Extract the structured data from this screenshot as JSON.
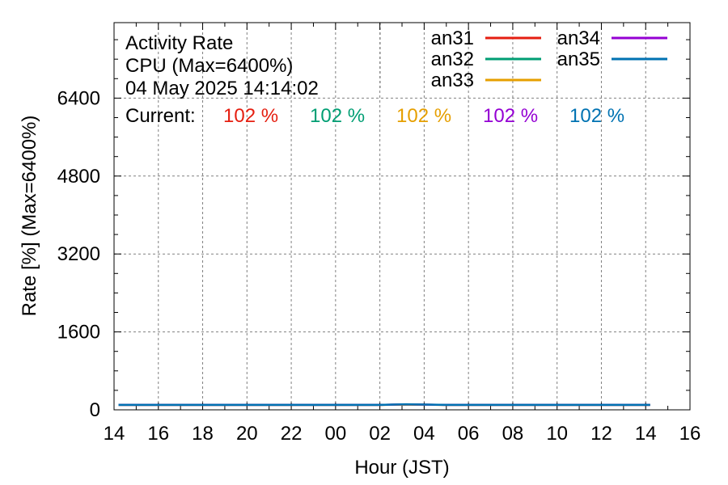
{
  "chart_data": {
    "type": "line",
    "title_lines": [
      "Activity Rate",
      "CPU (Max=6400%)",
      "04 May 2025 14:14:02"
    ],
    "current_label": "Current:",
    "current_values": [
      "102 %",
      "102 %",
      "102 %",
      "102 %",
      "102 %"
    ],
    "xlabel": "Hour (JST)",
    "ylabel": "Rate [%]  (Max=6400%)",
    "x_tick_labels": [
      "14",
      "16",
      "18",
      "20",
      "22",
      "00",
      "02",
      "04",
      "06",
      "08",
      "10",
      "12",
      "14",
      "16"
    ],
    "x_range_hours": [
      0,
      26
    ],
    "y_ticks": [
      0,
      1600,
      3200,
      4800,
      6400
    ],
    "ylim": [
      0,
      7950
    ],
    "grid": true,
    "legend_position": "top-right",
    "series": [
      {
        "name": "an31",
        "color": "#e51e10",
        "x": [
          0.2,
          3,
          6,
          9,
          12,
          13.2,
          15,
          18,
          21,
          24.2
        ],
        "y": [
          102,
          102,
          101,
          102,
          102,
          110,
          102,
          102,
          102,
          102
        ]
      },
      {
        "name": "an32",
        "color": "#009e73",
        "x": [
          0.2,
          3,
          6,
          9,
          12,
          13.2,
          15,
          18,
          21,
          24.2
        ],
        "y": [
          102,
          102,
          102,
          102,
          102,
          108,
          102,
          102,
          102,
          102
        ]
      },
      {
        "name": "an33",
        "color": "#e69f00",
        "x": [
          0.2,
          3,
          6,
          9,
          12,
          13.2,
          15,
          18,
          21,
          24.2
        ],
        "y": [
          102,
          101,
          102,
          102,
          102,
          106,
          102,
          102,
          102,
          102
        ]
      },
      {
        "name": "an34",
        "color": "#9400d3",
        "x": [
          0.2,
          3,
          6,
          9,
          12,
          13.2,
          15,
          18,
          21,
          24.2
        ],
        "y": [
          102,
          102,
          102,
          101,
          102,
          112,
          102,
          102,
          102,
          102
        ]
      },
      {
        "name": "an35",
        "color": "#0072b2",
        "x": [
          0.2,
          3,
          6,
          9,
          12,
          13.2,
          15,
          18,
          21,
          24.2
        ],
        "y": [
          102,
          102,
          102,
          102,
          102,
          115,
          102,
          102,
          102,
          102
        ]
      }
    ]
  }
}
